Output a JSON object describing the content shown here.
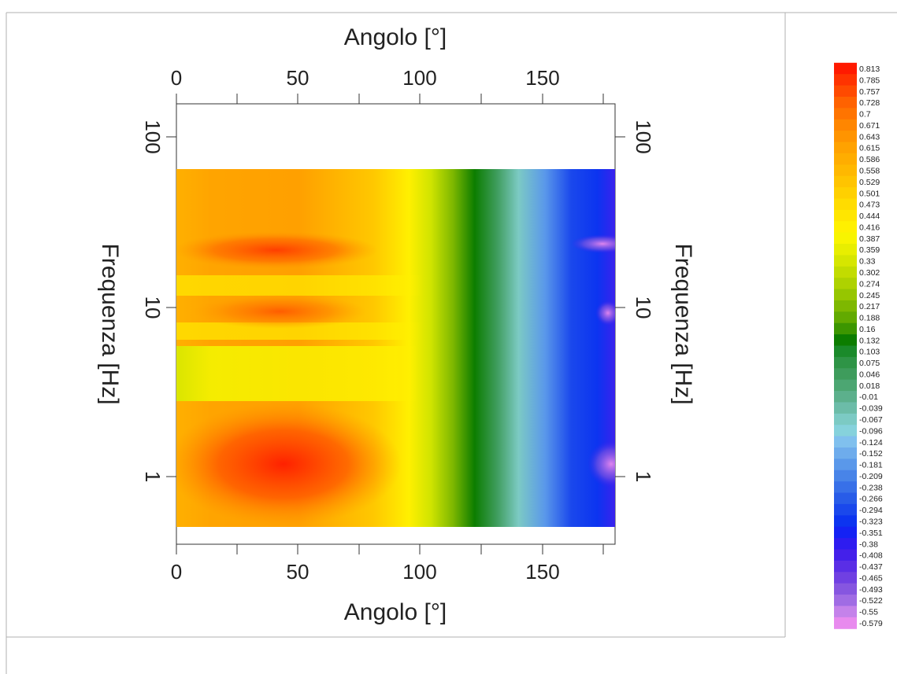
{
  "chart_data": {
    "type": "heatmap",
    "x_top_label": "Angolo [°]",
    "x_bottom_label": "Angolo [°]",
    "y_left_label": "Frequenza [Hz]",
    "y_right_label": "Frequenza [Hz]",
    "x_ticks": [
      "0",
      "50",
      "100",
      "150"
    ],
    "y_ticks": [
      "1",
      "10",
      "100"
    ],
    "xlim": [
      0,
      180
    ],
    "ylim": [
      0.3,
      150
    ],
    "y_scale": "log",
    "data_x_range": [
      0,
      180
    ],
    "data_y_range": [
      0.5,
      50
    ],
    "colorbar": {
      "labels": [
        "0.813",
        "0.785",
        "0.757",
        "0.728",
        "0.7",
        "0.671",
        "0.643",
        "0.615",
        "0.586",
        "0.558",
        "0.529",
        "0.501",
        "0.473",
        "0.444",
        "0.416",
        "0.387",
        "0.359",
        "0.33",
        "0.302",
        "0.274",
        "0.245",
        "0.217",
        "0.188",
        "0.16",
        "0.132",
        "0.103",
        "0.075",
        "0.046",
        "0.018",
        "-0.01",
        "-0.039",
        "-0.067",
        "-0.096",
        "-0.124",
        "-0.152",
        "-0.181",
        "-0.209",
        "-0.238",
        "-0.266",
        "-0.294",
        "-0.323",
        "-0.351",
        "-0.38",
        "-0.408",
        "-0.437",
        "-0.465",
        "-0.493",
        "-0.522",
        "-0.55",
        "-0.579"
      ],
      "colors": [
        "#ff1a00",
        "#ff3300",
        "#ff4a00",
        "#ff6200",
        "#ff7400",
        "#ff8600",
        "#ff9400",
        "#ffa200",
        "#ffad00",
        "#ffb800",
        "#ffc400",
        "#ffd000",
        "#ffdc00",
        "#ffe600",
        "#fff000",
        "#f8f400",
        "#e8ee00",
        "#d6e600",
        "#c2dc00",
        "#aed200",
        "#96c600",
        "#7eb800",
        "#62aa00",
        "#3c9600",
        "#0c7d00",
        "#1a8a2a",
        "#2e9446",
        "#3e9c5c",
        "#4ca672",
        "#5cb08c",
        "#6cbca8",
        "#7ccac4",
        "#86d2dc",
        "#80c0ee",
        "#6eacec",
        "#5a98ea",
        "#4884e8",
        "#3870e8",
        "#285ce8",
        "#1a48ec",
        "#0c34f0",
        "#1422f4",
        "#2e1cf0",
        "#4420ea",
        "#5a2ee6",
        "#7040e2",
        "#8656e0",
        "#a06ce4",
        "#c482ea",
        "#e88aee"
      ]
    },
    "grid": false,
    "legend": "right"
  }
}
